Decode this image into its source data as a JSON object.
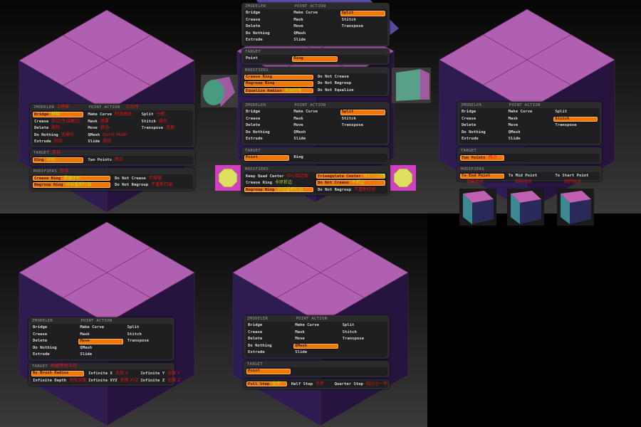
{
  "colors": {
    "accent": "#f07800",
    "note_red": "#e01818",
    "note_green": "#b8f020",
    "cube_top": "#b060b0",
    "cube_side": "#2a1a4a"
  },
  "panels": [
    {
      "id": "p1",
      "sections": [
        {
          "header": "ZMODELER",
          "header2": "POINT ACTION",
          "header_note": "Z建模",
          "header2_note": "点动作",
          "cols": 3,
          "cells": [
            {
              "label": "Bridge",
              "sel": true,
              "note": "桥接",
              "g": true
            },
            {
              "label": "Make Curve",
              "note": "制造曲线"
            },
            {
              "label": "Split",
              "note": "分割"
            },
            {
              "label": "Crease",
              "note": "折边(生成硬边)"
            },
            {
              "label": "Mask",
              "note": "遮罩"
            },
            {
              "label": "Stitch",
              "note": "缝合"
            },
            {
              "label": "Delete",
              "note": "删除"
            },
            {
              "label": "Move",
              "note": "移动"
            },
            {
              "label": "Transpose",
              "note": "变换"
            },
            {
              "label": "Do Nothing",
              "note": "无操作"
            },
            {
              "label": "QMesh",
              "note": "Quick Mesh"
            },
            {
              "label": ""
            },
            {
              "label": "Extrude",
              "note": "挤压"
            },
            {
              "label": "Slide",
              "note": "滑动"
            },
            {
              "label": ""
            }
          ]
        },
        {
          "header": "TARGET",
          "header_note": "目标",
          "cols": 3,
          "cells": [
            {
              "label": "Ring",
              "sel": true,
              "note": "环形",
              "g": true
            },
            {
              "label": "Two Points",
              "note": "两点"
            },
            {
              "label": ""
            }
          ]
        },
        {
          "header": "MODIFIERS",
          "header_note": "修改",
          "cols": 2,
          "cells": [
            {
              "label": "Crease Ring",
              "sel": true,
              "note": "褶皱环形",
              "g": true
            },
            {
              "label": "Do Not Crease",
              "note": "不褶皱"
            },
            {
              "label": "Regroup Ring",
              "sel": true,
              "note": "环形重新打组",
              "g": true
            },
            {
              "label": "Do Not Regroup",
              "note": "不重新打组"
            }
          ]
        }
      ]
    },
    {
      "id": "p2",
      "sections": [
        {
          "header": "ZMODELER",
          "header2": "POINT ACTION",
          "cols": 3,
          "cells": [
            {
              "label": "Bridge"
            },
            {
              "label": "Make Curve"
            },
            {
              "label": "Split",
              "sel": true
            },
            {
              "label": "Crease"
            },
            {
              "label": "Mask"
            },
            {
              "label": "Stitch"
            },
            {
              "label": "Delete"
            },
            {
              "label": "Move"
            },
            {
              "label": "Transpose"
            },
            {
              "label": "Do Nothing"
            },
            {
              "label": "QMesh"
            },
            {
              "label": ""
            },
            {
              "label": "Extrude"
            },
            {
              "label": "Slide"
            },
            {
              "label": ""
            }
          ]
        },
        {
          "header": "TARGET",
          "cols": 3,
          "cells": [
            {
              "label": "Point"
            },
            {
              "label": "Ring",
              "sel": true
            },
            {
              "label": ""
            }
          ]
        },
        {
          "header": "MODIFIERS",
          "cols": 2,
          "cells": [
            {
              "label": "Crease Ring",
              "sel": true
            },
            {
              "label": "Do Not Crease"
            },
            {
              "label": "Regroup Ring",
              "sel": true
            },
            {
              "label": "Do Not Regroup"
            },
            {
              "label": "Equalize Radius",
              "sel": true,
              "note": "半径均等",
              "g": true
            },
            {
              "label": "Do Not Equalize"
            }
          ]
        }
      ]
    },
    {
      "id": "p3",
      "sections": [
        {
          "header": "ZMODELER",
          "header2": "POINT ACTION",
          "cols": 3,
          "cells": [
            {
              "label": "Bridge"
            },
            {
              "label": "Make Curve"
            },
            {
              "label": "Split",
              "sel": true
            },
            {
              "label": "Crease"
            },
            {
              "label": "Mask"
            },
            {
              "label": "Stitch"
            },
            {
              "label": "Delete"
            },
            {
              "label": "Move"
            },
            {
              "label": "Transpose"
            },
            {
              "label": "Do Nothing"
            },
            {
              "label": "QMesh"
            },
            {
              "label": ""
            },
            {
              "label": "Extrude"
            },
            {
              "label": "Slide"
            },
            {
              "label": ""
            }
          ]
        },
        {
          "header": "TARGET",
          "cols": 3,
          "cells": [
            {
              "label": "Point",
              "sel": true
            },
            {
              "label": "Ring"
            },
            {
              "label": ""
            }
          ]
        },
        {
          "header": "MODIFIERS",
          "cols": 2,
          "cells": [
            {
              "label": "Keep Quad Center",
              "note": "中心四边面"
            },
            {
              "label": "Triangulate Center",
              "sel": true,
              "note": "中心三边面",
              "g": true
            },
            {
              "label": "Crease Ring",
              "note": "卡环折边",
              "g": true
            },
            {
              "label": "Do Not Crease",
              "sel": true,
              "note": "不折边",
              "g": true
            },
            {
              "label": "Regroup Ring",
              "sel": true,
              "note": "环形重新打组",
              "g": true
            },
            {
              "label": "Do Not Regroup",
              "note": "不重新打组"
            }
          ]
        }
      ]
    },
    {
      "id": "p4",
      "sections": [
        {
          "header": "ZMODELER",
          "header2": "POINT ACTION",
          "cols": 3,
          "cells": [
            {
              "label": "Bridge"
            },
            {
              "label": "Make Curve"
            },
            {
              "label": "Split"
            },
            {
              "label": "Crease"
            },
            {
              "label": "Mask"
            },
            {
              "label": "Stitch",
              "sel": true
            },
            {
              "label": "Delete"
            },
            {
              "label": "Move"
            },
            {
              "label": "Transpose"
            },
            {
              "label": "Do Nothing"
            },
            {
              "label": "QMesh"
            },
            {
              "label": ""
            },
            {
              "label": "Extrude"
            },
            {
              "label": "Slide"
            },
            {
              "label": ""
            }
          ]
        },
        {
          "header": "TARGET",
          "cols": 3,
          "cells": [
            {
              "label": "Two Points",
              "sel": true,
              "note": "两点"
            },
            {
              "label": ""
            },
            {
              "label": ""
            }
          ]
        },
        {
          "header": "MODIFIERS",
          "cols": 3,
          "cells": [
            {
              "label": "To End Point",
              "sel": true
            },
            {
              "label": "To Mid Point"
            },
            {
              "label": "To Start Point"
            }
          ]
        }
      ]
    },
    {
      "id": "p5",
      "sections": [
        {
          "header": "ZMODELER",
          "header2": "POINT ACTION",
          "cols": 3,
          "cells": [
            {
              "label": "Bridge"
            },
            {
              "label": "Make Curve"
            },
            {
              "label": "Split"
            },
            {
              "label": "Crease"
            },
            {
              "label": "Mask"
            },
            {
              "label": "Stitch"
            },
            {
              "label": "Delete"
            },
            {
              "label": "Move",
              "sel": true
            },
            {
              "label": "Transpose"
            },
            {
              "label": "Do Nothing"
            },
            {
              "label": "QMesh"
            },
            {
              "label": ""
            },
            {
              "label": "Extrude"
            },
            {
              "label": "Slide"
            },
            {
              "label": ""
            }
          ]
        },
        {
          "header": "TARGET",
          "header_note": "根据笔刷半径",
          "cols": 3,
          "cells": [
            {
              "label": "By Brush Radius",
              "sel": true
            },
            {
              "label": "Infinite X",
              "note": "无限 X"
            },
            {
              "label": "Infinite Y",
              "note": "无限 Y"
            },
            {
              "label": "Infinite Depth",
              "note": "无限深度"
            },
            {
              "label": "Infinite XYZ",
              "note": "无限 XYZ"
            },
            {
              "label": "Infinite Z",
              "note": "无限 Z"
            }
          ]
        }
      ]
    },
    {
      "id": "p6",
      "sections": [
        {
          "header": "ZMODELER",
          "header2": "POINT ACTION",
          "cols": 3,
          "cells": [
            {
              "label": "Bridge"
            },
            {
              "label": "Make Curve"
            },
            {
              "label": "Split"
            },
            {
              "label": "Crease"
            },
            {
              "label": "Mask"
            },
            {
              "label": "Stitch"
            },
            {
              "label": "Delete"
            },
            {
              "label": "Move"
            },
            {
              "label": "Transpose"
            },
            {
              "label": "Do Nothing"
            },
            {
              "label": "QMesh",
              "sel": true
            },
            {
              "label": ""
            },
            {
              "label": "Extrude"
            },
            {
              "label": "Slide"
            },
            {
              "label": ""
            }
          ]
        },
        {
          "header": "TARGET",
          "cols": 3,
          "cells": [
            {
              "label": "Point",
              "sel": true
            },
            {
              "label": ""
            },
            {
              "label": ""
            }
          ]
        },
        {
          "header": "",
          "cols": 3,
          "cells": [
            {
              "label": "Full Step",
              "sel": true,
              "note": "全步",
              "g": true
            },
            {
              "label": "Half Step",
              "note": "半步"
            },
            {
              "label": "Quarter Step",
              "note": "四分之一步"
            }
          ]
        }
      ]
    }
  ],
  "captions": {
    "end": "到最后点",
    "mid": "到中间点",
    "start": "到开始点"
  }
}
